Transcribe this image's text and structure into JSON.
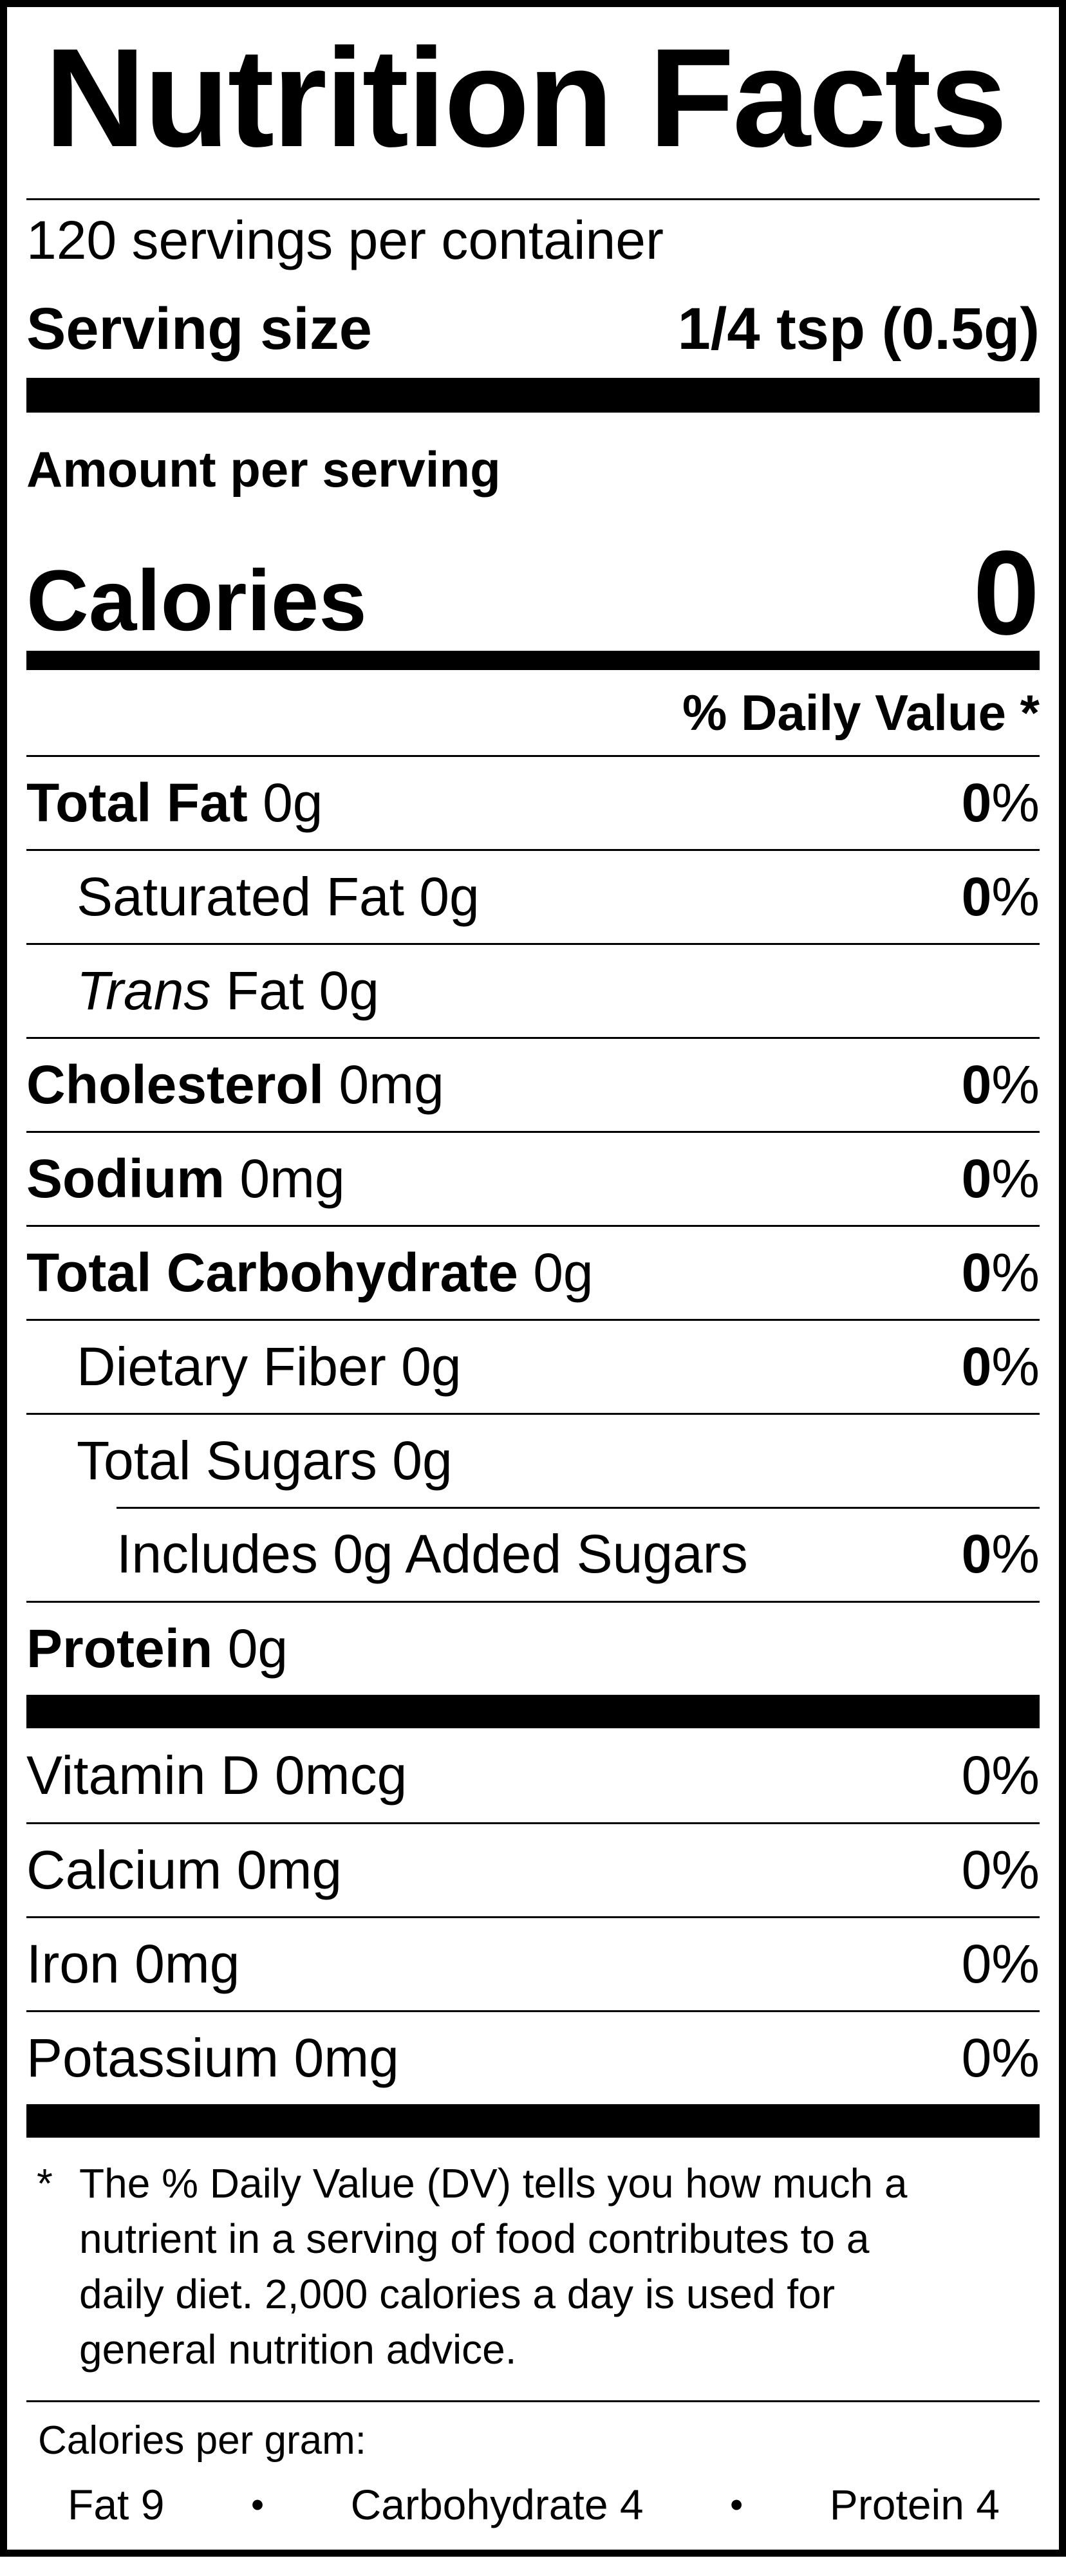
{
  "title": "Nutrition Facts",
  "servings_per_container": "120 servings per container",
  "serving_size": {
    "label": "Serving size",
    "value": "1/4 tsp (0.5g)"
  },
  "amount_per_serving": "Amount per serving",
  "calories": {
    "label": "Calories",
    "value": "0"
  },
  "daily_value_header": "% Daily Value *",
  "nutrient_rows": [
    {
      "id": "total-fat",
      "indent": 0,
      "divider": "full",
      "parts": [
        {
          "t": "Total Fat ",
          "b": true
        },
        {
          "t": "0g"
        }
      ],
      "pct": [
        {
          "t": "0",
          "b": true
        },
        {
          "t": "%"
        }
      ]
    },
    {
      "id": "saturated-fat",
      "indent": 1,
      "divider": "full",
      "parts": [
        {
          "t": "Saturated Fat 0g"
        }
      ],
      "pct": [
        {
          "t": "0",
          "b": true
        },
        {
          "t": "%"
        }
      ]
    },
    {
      "id": "trans-fat",
      "indent": 1,
      "divider": "full",
      "parts": [
        {
          "t": "Trans",
          "i": true
        },
        {
          "t": " Fat 0g"
        }
      ],
      "pct": null
    },
    {
      "id": "cholesterol",
      "indent": 0,
      "divider": "full",
      "parts": [
        {
          "t": "Cholesterol ",
          "b": true
        },
        {
          "t": "0mg"
        }
      ],
      "pct": [
        {
          "t": "0",
          "b": true
        },
        {
          "t": "%"
        }
      ]
    },
    {
      "id": "sodium",
      "indent": 0,
      "divider": "full",
      "parts": [
        {
          "t": "Sodium ",
          "b": true
        },
        {
          "t": "0mg"
        }
      ],
      "pct": [
        {
          "t": "0",
          "b": true
        },
        {
          "t": "%"
        }
      ]
    },
    {
      "id": "total-carbohydrate",
      "indent": 0,
      "divider": "full",
      "parts": [
        {
          "t": "Total Carbohydrate ",
          "b": true
        },
        {
          "t": "0g"
        }
      ],
      "pct": [
        {
          "t": "0",
          "b": true
        },
        {
          "t": "%"
        }
      ]
    },
    {
      "id": "dietary-fiber",
      "indent": 1,
      "divider": "full",
      "parts": [
        {
          "t": "Dietary Fiber 0g"
        }
      ],
      "pct": [
        {
          "t": "0",
          "b": true
        },
        {
          "t": "%"
        }
      ]
    },
    {
      "id": "total-sugars",
      "indent": 1,
      "divider": "full",
      "parts": [
        {
          "t": "Total Sugars 0g"
        }
      ],
      "pct": null
    },
    {
      "id": "added-sugars",
      "indent": 2,
      "divider": "indent",
      "parts": [
        {
          "t": "Includes 0g Added Sugars"
        }
      ],
      "pct": [
        {
          "t": "0",
          "b": true
        },
        {
          "t": "%"
        }
      ]
    },
    {
      "id": "protein",
      "indent": 0,
      "divider": "full",
      "parts": [
        {
          "t": "Protein ",
          "b": true
        },
        {
          "t": "0g"
        }
      ],
      "pct": null
    }
  ],
  "vitamin_rows": [
    {
      "id": "vitamin-d",
      "divider": "none",
      "parts": [
        {
          "t": "Vitamin D 0mcg"
        }
      ],
      "pct": [
        {
          "t": "0%"
        }
      ]
    },
    {
      "id": "calcium",
      "divider": "full",
      "parts": [
        {
          "t": "Calcium 0mg"
        }
      ],
      "pct": [
        {
          "t": "0%"
        }
      ]
    },
    {
      "id": "iron",
      "divider": "full",
      "parts": [
        {
          "t": "Iron 0mg"
        }
      ],
      "pct": [
        {
          "t": "0%"
        }
      ]
    },
    {
      "id": "potassium",
      "divider": "full",
      "parts": [
        {
          "t": "Potassium 0mg"
        }
      ],
      "pct": [
        {
          "t": "0%"
        }
      ]
    }
  ],
  "footnote": {
    "marker": "*",
    "text": "The % Daily Value (DV) tells you how much a nutrient in a serving of food contributes to a daily diet. 2,000 calories a day is used for general nutrition advice."
  },
  "calories_per_gram": {
    "label": "Calories per gram:",
    "bullet": "•",
    "items": [
      "Fat 9",
      "Carbohydrate 4",
      "Protein 4"
    ]
  },
  "colors": {
    "ink": "#000000",
    "paper": "#ffffff"
  }
}
